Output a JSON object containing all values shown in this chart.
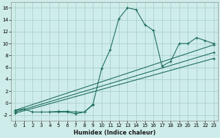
{
  "xlabel": "Humidex (Indice chaleur)",
  "background_color": "#ceecea",
  "grid_color": "#aacfcd",
  "line_color": "#1a6b5a",
  "xlim": [
    -0.5,
    23.5
  ],
  "ylim": [
    -3.0,
    17.0
  ],
  "xticks": [
    0,
    1,
    2,
    3,
    4,
    5,
    6,
    7,
    8,
    9,
    10,
    11,
    12,
    13,
    14,
    15,
    16,
    17,
    18,
    19,
    20,
    21,
    22,
    23
  ],
  "yticks": [
    -2,
    0,
    2,
    4,
    6,
    8,
    10,
    12,
    14,
    16
  ],
  "series": [
    {
      "x": [
        0,
        1,
        2,
        3,
        4,
        5,
        6,
        7,
        8,
        9,
        10,
        11,
        12,
        13,
        14,
        15,
        16,
        17,
        18,
        19,
        20,
        21,
        22,
        23
      ],
      "y": [
        -1.2,
        -1.0,
        -1.5,
        -1.5,
        -1.5,
        -1.4,
        -1.4,
        -1.5,
        -1.5,
        -0.2,
        5.8,
        9.0,
        14.2,
        16.0,
        15.7,
        13.2,
        12.2,
        6.2,
        7.0,
        10.0,
        10.0,
        11.0,
        10.5,
        10.0
      ]
    },
    {
      "x": [
        0,
        23
      ],
      "y": [
        -1.2,
        9.8
      ]
    },
    {
      "x": [
        0,
        23
      ],
      "y": [
        -1.5,
        8.5
      ]
    },
    {
      "x": [
        0,
        23
      ],
      "y": [
        -1.7,
        7.5
      ]
    },
    {
      "x": [
        4,
        5,
        6,
        7,
        8,
        9
      ],
      "y": [
        -1.5,
        -1.5,
        -1.5,
        -1.8,
        -1.5,
        -0.3
      ]
    }
  ]
}
